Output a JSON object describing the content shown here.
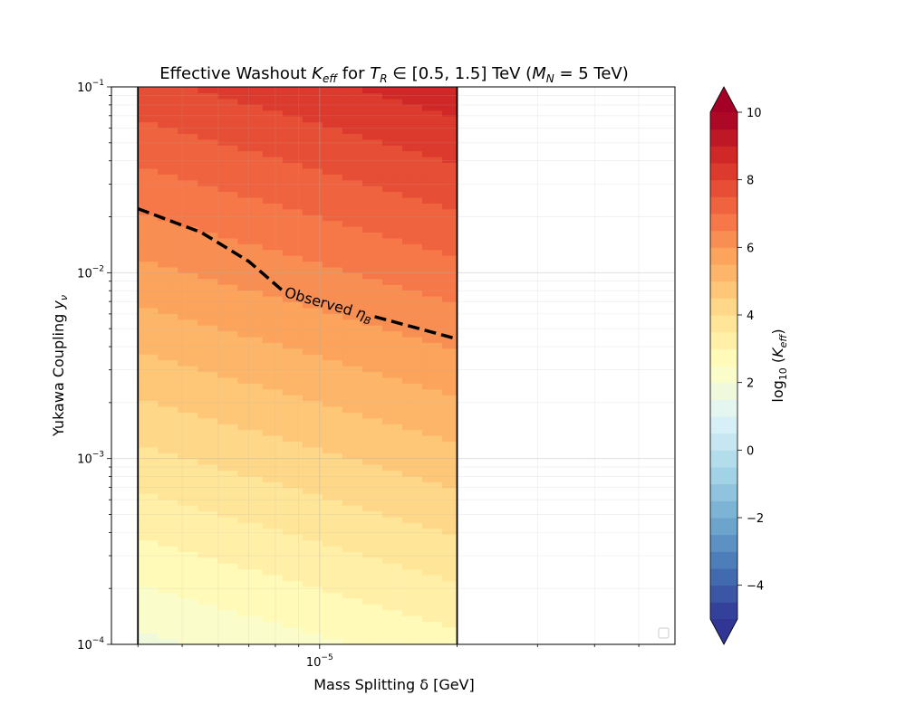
{
  "chart_data": {
    "type": "heatmap",
    "title": "Effective Washout K_eff for T_R ∈ [0.5, 1.5] TeV (M_N = 5 TeV)",
    "title_parts": {
      "pre": "Effective Washout ",
      "K": "K",
      "K_sub": "eff",
      "for": " for ",
      "T": "T",
      "T_sub": "R",
      "range": " ∈ [0.5, 1.5] TeV (",
      "M": "M",
      "M_sub": "N",
      "post": " = 5 TeV)"
    },
    "xlabel": "Mass Splitting δ [GeV]",
    "ylabel_parts": {
      "main": "Yukawa Coupling ",
      "y": "y",
      "sub": "ν"
    },
    "x_scale": "log",
    "y_scale": "log",
    "xlim": [
      3.5e-06,
      6e-05
    ],
    "ylim": [
      0.0001,
      0.1
    ],
    "x_ticks": [
      {
        "value": 1e-05,
        "base": "10",
        "exp": "−5"
      }
    ],
    "y_ticks": [
      {
        "value": 0.0001,
        "base": "10",
        "exp": "−4"
      },
      {
        "value": 0.001,
        "base": "10",
        "exp": "−3"
      },
      {
        "value": 0.01,
        "base": "10",
        "exp": "−2"
      },
      {
        "value": 0.1,
        "base": "10",
        "exp": "−1"
      }
    ],
    "grid": true,
    "shaded_region_x": [
      4e-06,
      2e-05
    ],
    "field": "log10(K_eff) ≈ 2·log10(y_ν) + 1.4·log10(δ) + 17.4",
    "colorbar": {
      "label_prefix": "log",
      "label_sub": "10",
      "label_K": "K",
      "label_K_sub": "eff",
      "min": -5,
      "max": 10,
      "extend": "both",
      "ticks": [
        "−4",
        "−2",
        "0",
        "2",
        "4",
        "6",
        "8",
        "10"
      ],
      "tick_values": [
        -4,
        -2,
        0,
        2,
        4,
        6,
        8,
        10
      ],
      "colormap": "RdYlBu_r"
    },
    "contour_line": {
      "label_text": "Observed ",
      "label_eta": "η",
      "label_sub": "B",
      "style": "dashed",
      "color": "#000000",
      "points": [
        {
          "x": 4e-06,
          "y": 0.0221
        },
        {
          "x": 5.5e-06,
          "y": 0.0165
        },
        {
          "x": 7e-06,
          "y": 0.0115
        },
        {
          "x": 8.3e-06,
          "y": 0.008
        },
        {
          "x": 1.32e-05,
          "y": 0.0058
        },
        {
          "x": 2e-05,
          "y": 0.0044
        }
      ]
    },
    "legend": "bottom-right, empty"
  }
}
